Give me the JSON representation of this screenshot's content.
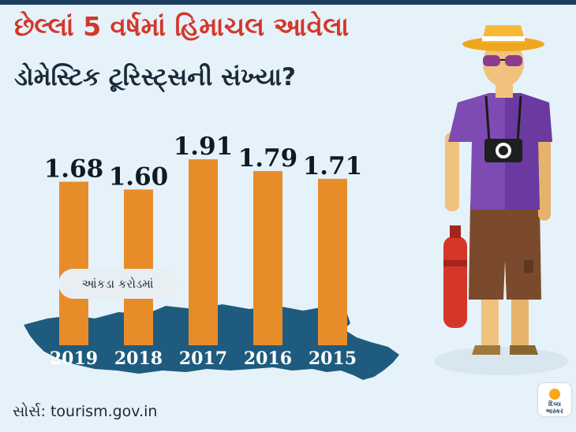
{
  "title": {
    "line1": "છેલ્લાં 5 વર્ષમાં હિમાચલ આવેલા",
    "line2": "ડોમેસ્ટિક ટૂરિસ્ટ્સની સંખ્યા?"
  },
  "unit_note": "આંકડા કરોડમાં",
  "source": "સોર્સ: tourism.gov.in",
  "logo": {
    "name": "દિવ્ય ભાસ્કર",
    "line1": "દિવ્ય",
    "line2": "ભાસ્કર"
  },
  "colors": {
    "background": "#e5f2f9",
    "title_accent": "#d4372a",
    "bar": "#e88c2a",
    "map": "#1f5b7e",
    "topbar": "#1d3f5f"
  },
  "chart_data": {
    "type": "bar",
    "categories": [
      "2019",
      "2018",
      "2017",
      "2016",
      "2015"
    ],
    "values": [
      1.68,
      1.6,
      1.91,
      1.79,
      1.71
    ],
    "value_labels": [
      "1.68",
      "1.60",
      "1.91",
      "1.79",
      "1.71"
    ],
    "title": "છેલ્લાં 5 વર્ષમાં હિમાચલ આવેલા ડોમેસ્ટિક ટૂરિસ્ટ્સની સંખ્યા?",
    "unit": "આંકડા કરોડમાં",
    "grid": false,
    "legend": "none"
  }
}
